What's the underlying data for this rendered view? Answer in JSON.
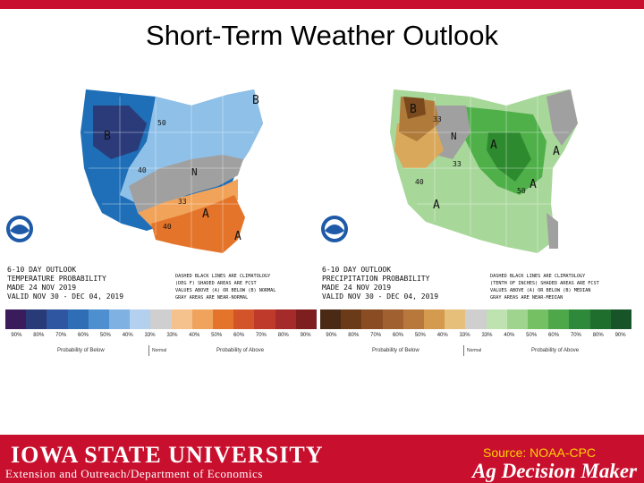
{
  "title": "Short-Term Weather Outlook",
  "temperature_map": {
    "header_lines": [
      "6-10 DAY OUTLOOK",
      "TEMPERATURE PROBABILITY",
      "MADE 24 NOV 2019",
      "VALID NOV 30 - DEC 04, 2019"
    ],
    "note_lines": [
      "DASHED BLACK LINES ARE CLIMATOLOGY",
      "(DEG F) SHADED AREAS ARE FCST",
      "VALUES ABOVE (A) OR BELOW (B) NORMAL",
      "GRAY AREAS ARE NEAR-NORMAL"
    ],
    "labels": [
      "B",
      "B",
      "A",
      "A",
      "N",
      "50",
      "40",
      "33",
      "40"
    ],
    "colors": {
      "below_dark": "#2b3b7a",
      "below_mid": "#1e6fb8",
      "below_light": "#8fc0e8",
      "normal": "#a0a0a0",
      "above_light": "#f2a35a",
      "above_mid": "#e3742a"
    },
    "legend": {
      "colors": [
        "#3a1c5c",
        "#283b78",
        "#2f56a0",
        "#2f6eb6",
        "#4e8fd0",
        "#7fb2e2",
        "#b3d1ee",
        "#cfcfcf",
        "#f5c18c",
        "#efa35c",
        "#e3742a",
        "#d4542a",
        "#c03a2c",
        "#a52a2a",
        "#7f1e1e"
      ],
      "percents": [
        "90%",
        "80%",
        "70%",
        "60%",
        "50%",
        "40%",
        "33%",
        "33%",
        "40%",
        "50%",
        "60%",
        "70%",
        "80%",
        "90%"
      ],
      "below_label": "Probability of Below",
      "normal_label": "Normal",
      "above_label": "Probability of Above"
    }
  },
  "precipitation_map": {
    "header_lines": [
      "6-10 DAY OUTLOOK",
      "PRECIPITATION PROBABILITY",
      "MADE 24 NOV 2019",
      "VALID NOV 30 - DEC 04, 2019"
    ],
    "note_lines": [
      "DASHED BLACK LINES ARE CLIMATOLOGY",
      "(TENTH OF INCHES) SHADED AREAS ARE FCST",
      "VALUES ABOVE (A) OR BELOW (B) MEDIAN",
      "GRAY AREAS ARE NEAR-MEDIAN"
    ],
    "labels": [
      "B",
      "N",
      "A",
      "A",
      "A",
      "A",
      "33",
      "40",
      "50",
      "33"
    ],
    "colors": {
      "below_dark": "#7a4a1e",
      "below_mid": "#b07a3a",
      "below_light": "#d9a85a",
      "normal": "#a0a0a0",
      "above_light": "#a8d79a",
      "above_mid": "#4fb04a",
      "above_dark": "#2e8a2e"
    },
    "legend": {
      "colors": [
        "#4a2a14",
        "#6b3a18",
        "#8a4c22",
        "#a06030",
        "#b8783c",
        "#d49a4e",
        "#e6c07a",
        "#cfcfcf",
        "#bfe3b0",
        "#9fd48e",
        "#74c062",
        "#4ea84a",
        "#2e8a3a",
        "#1f6e2e",
        "#175428"
      ],
      "percents": [
        "90%",
        "80%",
        "70%",
        "60%",
        "50%",
        "40%",
        "33%",
        "33%",
        "40%",
        "50%",
        "60%",
        "70%",
        "80%",
        "90%"
      ],
      "below_label": "Probability of Below",
      "normal_label": "Normal",
      "above_label": "Probability of Above"
    }
  },
  "footer": {
    "university": "IOWA STATE UNIVERSITY",
    "department": "Extension and Outreach/Department of Economics",
    "source": "Source: NOAA-CPC",
    "brand": "Ag Decision Maker"
  }
}
